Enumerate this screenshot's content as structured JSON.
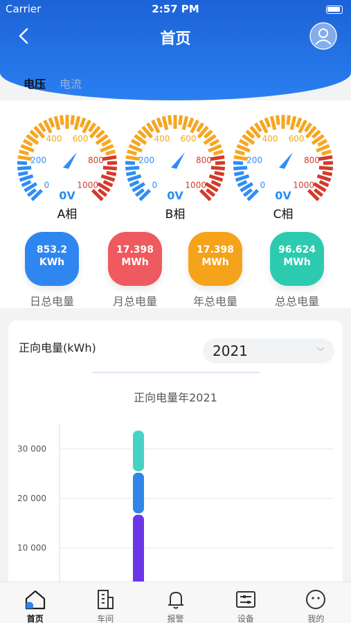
{
  "status_bar": {
    "carrier": "Carrier",
    "time": "2:57 PM"
  },
  "nav": {
    "title": "首页",
    "back_icon": "chevron-left-icon",
    "avatar_icon": "user-icon"
  },
  "tabs": [
    {
      "label": "电压",
      "active": true
    },
    {
      "label": "电流",
      "active": false
    }
  ],
  "gauges": {
    "ticks": [
      "0",
      "200",
      "400",
      "600",
      "800",
      "1000"
    ],
    "items": [
      {
        "phase": "A相",
        "voltage": "0V"
      },
      {
        "phase": "B相",
        "voltage": "0V"
      },
      {
        "phase": "C相",
        "voltage": "0V"
      }
    ],
    "colors": {
      "low": "#2f8df5",
      "mid": "#f5a623",
      "high": "#d23a2a"
    }
  },
  "energy": [
    {
      "value": "853.2",
      "unit": "KWh",
      "label": "日总电量",
      "color": "#2f86f0"
    },
    {
      "value": "17.398",
      "unit": "MWh",
      "label": "月总电量",
      "color": "#ee5a5f"
    },
    {
      "value": "17.398",
      "unit": "MWh",
      "label": "年总电量",
      "color": "#f5a31a"
    },
    {
      "value": "96.624",
      "unit": "MWh",
      "label": "总总电量",
      "color": "#2ccbb0"
    }
  ],
  "chart_card": {
    "title": "正向电量(kWh)",
    "year": "2021",
    "chart_title": "正向电量年2021"
  },
  "chart_data": {
    "type": "bar",
    "title": "正向电量年2021",
    "ylim": [
      0,
      35000
    ],
    "yticks": [
      "10 000",
      "20 000",
      "30 000"
    ],
    "ytick_values": [
      10000,
      20000,
      30000
    ],
    "stacked": true,
    "series": [
      {
        "values": [
          17000
        ],
        "color": "#6b35e8"
      },
      {
        "values": [
          8500
        ],
        "color": "#2f86e8"
      },
      {
        "values": [
          8500
        ],
        "color": "#45d3c4"
      }
    ]
  },
  "tabbar": [
    {
      "label": "首页",
      "icon": "home-icon",
      "active": true
    },
    {
      "label": "车间",
      "icon": "building-icon",
      "active": false
    },
    {
      "label": "报警",
      "icon": "bell-icon",
      "active": false
    },
    {
      "label": "设备",
      "icon": "device-icon",
      "active": false
    },
    {
      "label": "我的",
      "icon": "profile-icon",
      "active": false
    }
  ]
}
